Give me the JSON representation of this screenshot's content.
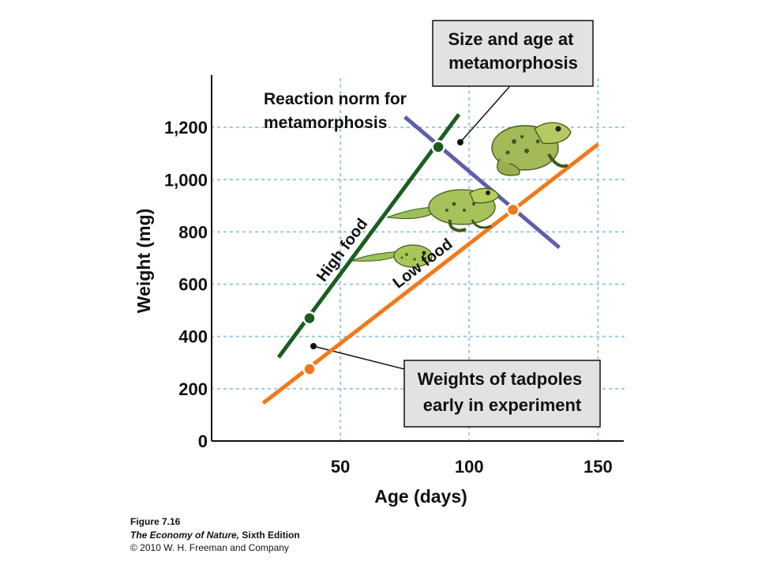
{
  "chart_data": {
    "type": "line",
    "xlabel": "Age (days)",
    "ylabel": "Weight (mg)",
    "xlim": [
      0,
      160
    ],
    "ylim": [
      0,
      1400
    ],
    "x_ticks": [
      50,
      100,
      150
    ],
    "y_ticks": [
      0,
      200,
      400,
      600,
      800,
      1000,
      1200
    ],
    "x_tick_labels": [
      "50",
      "100",
      "150"
    ],
    "y_tick_labels": [
      "0",
      "200",
      "400",
      "600",
      "800",
      "1,000",
      "1,200"
    ],
    "grid": true,
    "series": [
      {
        "name": "High food",
        "color": "#1a5e1f",
        "x": [
          26,
          96
        ],
        "y": [
          320,
          1250
        ]
      },
      {
        "name": "Low food",
        "color": "#f07a1a",
        "x": [
          20,
          150
        ],
        "y": [
          145,
          1135
        ]
      },
      {
        "name": "Reaction norm for metamorphosis",
        "color": "#5f5ea8",
        "x": [
          75,
          135
        ],
        "y": [
          1240,
          740
        ]
      }
    ],
    "points": [
      {
        "series": "High food",
        "x": 38,
        "y": 470,
        "color": "#1a5e1f"
      },
      {
        "series": "High food",
        "x": 88,
        "y": 1125,
        "color": "#1a5e1f"
      },
      {
        "series": "Low food",
        "x": 38,
        "y": 275,
        "color": "#f07a1a"
      },
      {
        "series": "Low food",
        "x": 117,
        "y": 885,
        "color": "#f07a1a"
      }
    ],
    "annotations": [
      {
        "lines": [
          "Reaction norm for",
          "metamorphosis"
        ]
      }
    ],
    "callouts": [
      {
        "lines": [
          "Size and age at",
          "metamorphosis"
        ]
      },
      {
        "lines": [
          "Weights of tadpoles",
          "early in experiment"
        ]
      }
    ],
    "icons": [
      "tadpole-icon",
      "tadpole-with-legs-icon",
      "frog-icon"
    ]
  },
  "caption": {
    "figure": "Figure 7.16",
    "book_title": "The Economy of Nature,",
    "edition": " Sixth Edition",
    "copyright": "© 2010 W. H. Freeman and Company"
  }
}
